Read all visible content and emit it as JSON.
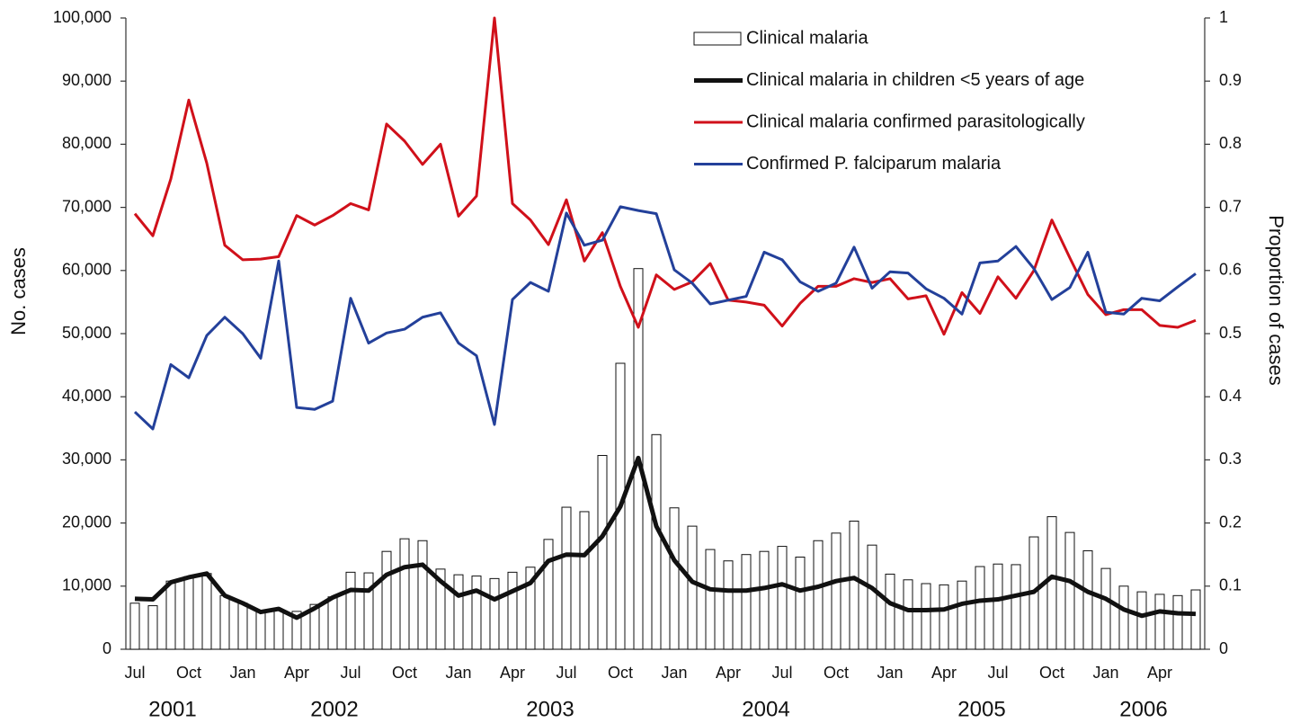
{
  "chart_data": {
    "type": "bar-line",
    "y_label": "No.  cases",
    "y2_label": "Proportion of  cases",
    "categories": [
      "Jul",
      null,
      null,
      "Oct",
      null,
      null,
      "Jan",
      null,
      null,
      "Apr",
      null,
      null,
      "Jul",
      null,
      null,
      "Oct",
      null,
      null,
      "Jan",
      null,
      null,
      "Apr",
      null,
      null,
      "Jul",
      null,
      null,
      "Oct",
      null,
      null,
      "Jan",
      null,
      null,
      "Apr",
      null,
      null,
      "Jul",
      null,
      null,
      "Oct",
      null,
      null,
      "Jan",
      null,
      null,
      "Apr",
      null,
      null,
      "Jul",
      null,
      null,
      "Oct",
      null,
      null,
      "Jan",
      null,
      null,
      "Apr",
      null,
      null
    ],
    "years": [
      "2001",
      "2002",
      "2003",
      "2004",
      "2005",
      "2006"
    ],
    "ylim": [
      0,
      100000
    ],
    "yticks": [
      0,
      {
        "value": 10000,
        "label": "10,000"
      },
      {
        "value": 20000,
        "label": "20,000"
      },
      {
        "value": 30000,
        "label": "30,000"
      },
      {
        "value": 40000,
        "label": "40,000"
      },
      {
        "value": 50000,
        "label": "50,000"
      },
      {
        "value": 60000,
        "label": "60,000"
      },
      {
        "value": 70000,
        "label": "70,000"
      },
      {
        "value": 80000,
        "label": "80,000"
      },
      {
        "value": 90000,
        "label": "90,000"
      },
      {
        "value": 100000,
        "label": "100,000"
      }
    ],
    "y2lim": [
      0,
      1
    ],
    "y2ticks": [
      0,
      0.1,
      0.2,
      0.3,
      0.4,
      0.5,
      0.6,
      0.7,
      0.8,
      0.9,
      1
    ],
    "series": [
      {
        "name": "Clinical malaria",
        "type": "bar",
        "color": "#ffffff",
        "values": [
          7300,
          6900,
          10800,
          11500,
          12000,
          8500,
          7300,
          6000,
          6300,
          6000,
          7100,
          8300,
          12200,
          12100,
          15500,
          17500,
          17200,
          12700,
          11800,
          11600,
          11200,
          12200,
          13000,
          17400,
          22500,
          21800,
          30700,
          45300,
          60300,
          34000,
          22400,
          19500,
          15800,
          14000,
          15000,
          15500,
          16300,
          14600,
          17200,
          18400,
          20300,
          16500,
          11900,
          11000,
          10400,
          10200,
          10800,
          13100,
          13500,
          13400,
          17800,
          21000,
          18500,
          15600,
          12800,
          10000,
          9100,
          8700,
          8500,
          9400
        ]
      },
      {
        "name": "Clinical malaria in children <5 years of age",
        "type": "line",
        "color": "#111111",
        "values": [
          8000,
          7900,
          10600,
          11400,
          12000,
          8500,
          7300,
          5900,
          6400,
          5000,
          6500,
          8200,
          9400,
          9300,
          11800,
          13000,
          13400,
          10800,
          8500,
          9300,
          7900,
          9200,
          10500,
          14000,
          15000,
          14900,
          17900,
          22600,
          30300,
          19500,
          14100,
          10700,
          9500,
          9300,
          9300,
          9700,
          10300,
          9300,
          9900,
          10800,
          11300,
          9700,
          7300,
          6200,
          6200,
          6300,
          7200,
          7700,
          7900,
          8500,
          9100,
          11500,
          10800,
          9100,
          8000,
          6300,
          5300,
          6000,
          5700,
          5600
        ]
      },
      {
        "name": "Clinical malaria confirmed parasitologically",
        "type": "line",
        "color": "#d0101a",
        "axis": "y2",
        "values": [
          0.69,
          0.655,
          0.745,
          0.87,
          0.77,
          0.64,
          0.617,
          0.618,
          0.622,
          0.687,
          0.672,
          0.687,
          0.706,
          0.696,
          0.832,
          0.805,
          0.768,
          0.8,
          0.686,
          0.718,
          1.0,
          0.706,
          0.68,
          0.641,
          0.712,
          0.615,
          0.66,
          0.575,
          0.51,
          0.593,
          0.57,
          0.582,
          0.611,
          0.553,
          0.55,
          0.545,
          0.512,
          0.548,
          0.575,
          0.575,
          0.587,
          0.581,
          0.587,
          0.555,
          0.56,
          0.499,
          0.565,
          0.532,
          0.59,
          0.556,
          0.6,
          0.68,
          0.62,
          0.562,
          0.53,
          0.538,
          0.538,
          0.513,
          0.51,
          0.521
        ]
      },
      {
        "name": "Confirmed P. falciparum malaria",
        "type": "line",
        "color": "#23409a",
        "axis": "y2",
        "values": [
          0.376,
          0.349,
          0.451,
          0.43,
          0.497,
          0.526,
          0.5,
          0.461,
          0.615,
          0.383,
          0.38,
          0.393,
          0.556,
          0.485,
          0.501,
          0.507,
          0.526,
          0.533,
          0.485,
          0.465,
          0.356,
          0.554,
          0.581,
          0.567,
          0.691,
          0.64,
          0.648,
          0.701,
          0.695,
          0.69,
          0.601,
          0.58,
          0.547,
          0.553,
          0.559,
          0.629,
          0.617,
          0.582,
          0.567,
          0.58,
          0.637,
          0.572,
          0.598,
          0.596,
          0.571,
          0.556,
          0.531,
          0.612,
          0.615,
          0.638,
          0.603,
          0.554,
          0.573,
          0.629,
          0.534,
          0.531,
          0.556,
          0.552,
          0.574,
          0.595
        ]
      }
    ]
  }
}
